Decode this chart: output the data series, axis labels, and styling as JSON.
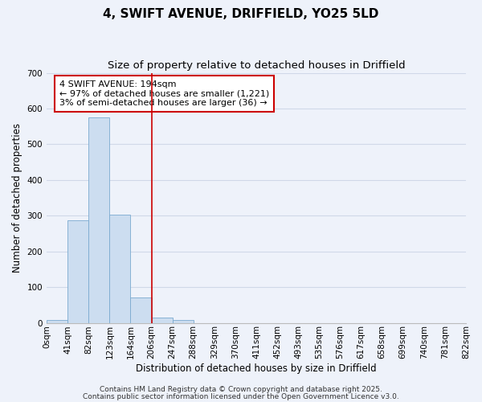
{
  "title": "4, SWIFT AVENUE, DRIFFIELD, YO25 5LD",
  "subtitle": "Size of property relative to detached houses in Driffield",
  "bar_values": [
    8,
    288,
    575,
    303,
    70,
    15,
    8,
    0,
    0,
    0,
    0,
    0,
    0,
    0,
    0,
    0,
    0,
    0,
    0,
    0
  ],
  "bin_labels": [
    "0sqm",
    "41sqm",
    "82sqm",
    "123sqm",
    "164sqm",
    "206sqm",
    "247sqm",
    "288sqm",
    "329sqm",
    "370sqm",
    "411sqm",
    "452sqm",
    "493sqm",
    "535sqm",
    "576sqm",
    "617sqm",
    "658sqm",
    "699sqm",
    "740sqm",
    "781sqm",
    "822sqm"
  ],
  "xlabel": "Distribution of detached houses by size in Driffield",
  "ylabel": "Number of detached properties",
  "ylim": [
    0,
    700
  ],
  "yticks": [
    0,
    100,
    200,
    300,
    400,
    500,
    600,
    700
  ],
  "bar_color": "#ccddf0",
  "bar_edge_color": "#7aaad0",
  "grid_color": "#d0d8e8",
  "background_color": "#eef2fa",
  "vline_color": "#cc0000",
  "annotation_box_title": "4 SWIFT AVENUE: 194sqm",
  "annotation_line1": "← 97% of detached houses are smaller (1,221)",
  "annotation_line2": "3% of semi-detached houses are larger (36) →",
  "annotation_box_color": "#cc0000",
  "footer1": "Contains HM Land Registry data © Crown copyright and database right 2025.",
  "footer2": "Contains public sector information licensed under the Open Government Licence v3.0.",
  "title_fontsize": 11,
  "subtitle_fontsize": 9.5,
  "axis_label_fontsize": 8.5,
  "tick_fontsize": 7.5,
  "annotation_fontsize": 8,
  "footer_fontsize": 6.5
}
